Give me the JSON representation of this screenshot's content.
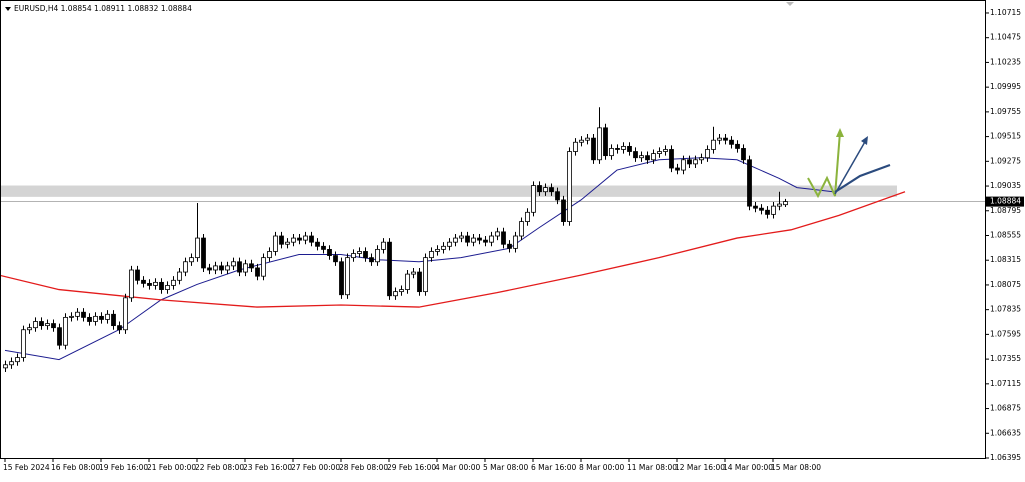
{
  "chart_data": {
    "type": "candlestick",
    "title": "EURUSD,H4  1.08854 1.08911 1.08832 1.08884",
    "current_price": 1.08884,
    "ylim": [
      1.06395,
      1.10841
    ],
    "yticks": [
      1.10715,
      1.10475,
      1.10235,
      1.09995,
      1.09755,
      1.09515,
      1.09275,
      1.09035,
      1.08795,
      1.08555,
      1.08315,
      1.08075,
      1.07835,
      1.07595,
      1.07355,
      1.07115,
      1.06875,
      1.06635,
      1.06395
    ],
    "xticks": [
      {
        "value": 0,
        "label": "15 Feb 2024"
      },
      {
        "value": 8,
        "label": "16 Feb 08:00"
      },
      {
        "value": 16,
        "label": "19 Feb 16:00"
      },
      {
        "value": 24,
        "label": "21 Feb 00:00"
      },
      {
        "value": 32,
        "label": "22 Feb 08:00"
      },
      {
        "value": 40,
        "label": "23 Feb 16:00"
      },
      {
        "value": 48,
        "label": "27 Feb 00:00"
      },
      {
        "value": 56,
        "label": "28 Feb 08:00"
      },
      {
        "value": 64,
        "label": "29 Feb 16:00"
      },
      {
        "value": 72,
        "label": "4 Mar 00:00"
      },
      {
        "value": 80,
        "label": "5 Mar 08:00"
      },
      {
        "value": 88,
        "label": "6 Mar 16:00"
      },
      {
        "value": 96,
        "label": "8 Mar 00:00"
      },
      {
        "value": 104,
        "label": "11 Mar 08:00"
      },
      {
        "value": 112,
        "label": "12 Mar 16:00"
      },
      {
        "value": 120,
        "label": "14 Mar 00:00"
      },
      {
        "value": 128,
        "label": "15 Mar 08:00"
      }
    ],
    "zone": [
      1.0893,
      1.0904
    ],
    "up_color": "#ffffff",
    "down_color": "#000000",
    "ohlc": [
      [
        1.0727,
        1.0734,
        1.0723,
        1.073
      ],
      [
        1.073,
        1.0737,
        1.0726,
        1.0733
      ],
      [
        1.0733,
        1.0741,
        1.0729,
        1.0737
      ],
      [
        1.0737,
        1.0768,
        1.0733,
        1.0764
      ],
      [
        1.0764,
        1.077,
        1.076,
        1.0766
      ],
      [
        1.0766,
        1.0776,
        1.0762,
        1.0772
      ],
      [
        1.0772,
        1.0776,
        1.0764,
        1.0768
      ],
      [
        1.0768,
        1.0774,
        1.0764,
        1.077
      ],
      [
        1.077,
        1.0774,
        1.0762,
        1.0766
      ],
      [
        1.0766,
        1.077,
        1.0745,
        1.0749
      ],
      [
        1.0749,
        1.078,
        1.0745,
        1.0776
      ],
      [
        1.0776,
        1.0781,
        1.0772,
        1.0777
      ],
      [
        1.0777,
        1.0785,
        1.0773,
        1.0781
      ],
      [
        1.0781,
        1.0785,
        1.0772,
        1.0776
      ],
      [
        1.0776,
        1.078,
        1.0768,
        1.0772
      ],
      [
        1.0772,
        1.0781,
        1.0768,
        1.0777
      ],
      [
        1.0777,
        1.0781,
        1.077,
        1.0774
      ],
      [
        1.0774,
        1.0783,
        1.077,
        1.0779
      ],
      [
        1.0779,
        1.0783,
        1.0764,
        1.0768
      ],
      [
        1.0768,
        1.0772,
        1.076,
        1.0764
      ],
      [
        1.0764,
        1.0799,
        1.076,
        1.0795
      ],
      [
        1.0795,
        1.0826,
        1.0791,
        1.0822
      ],
      [
        1.0822,
        1.0826,
        1.0808,
        1.0812
      ],
      [
        1.0812,
        1.0816,
        1.0805,
        1.0809
      ],
      [
        1.0809,
        1.0813,
        1.0803,
        1.0807
      ],
      [
        1.0807,
        1.0814,
        1.0803,
        1.081
      ],
      [
        1.081,
        1.0814,
        1.0799,
        1.0803
      ],
      [
        1.0803,
        1.0811,
        1.0799,
        1.0807
      ],
      [
        1.0807,
        1.0816,
        1.0803,
        1.0812
      ],
      [
        1.0812,
        1.0824,
        1.0808,
        1.082
      ],
      [
        1.082,
        1.0834,
        1.0816,
        1.083
      ],
      [
        1.083,
        1.0838,
        1.0826,
        1.0834
      ],
      [
        1.0834,
        1.0887,
        1.083,
        1.0853
      ],
      [
        1.0853,
        1.0857,
        1.082,
        1.0824
      ],
      [
        1.0824,
        1.0828,
        1.0818,
        1.0822
      ],
      [
        1.0822,
        1.083,
        1.0818,
        1.0826
      ],
      [
        1.0826,
        1.083,
        1.0818,
        1.0822
      ],
      [
        1.0822,
        1.083,
        1.0818,
        1.0826
      ],
      [
        1.0826,
        1.0834,
        1.0822,
        1.083
      ],
      [
        1.083,
        1.0834,
        1.0816,
        1.082
      ],
      [
        1.082,
        1.0832,
        1.0816,
        1.0828
      ],
      [
        1.0828,
        1.0832,
        1.082,
        1.0824
      ],
      [
        1.0824,
        1.0828,
        1.0812,
        1.0816
      ],
      [
        1.0816,
        1.0838,
        1.0812,
        1.0834
      ],
      [
        1.0834,
        1.0844,
        1.083,
        1.084
      ],
      [
        1.084,
        1.0859,
        1.0836,
        1.0855
      ],
      [
        1.0855,
        1.0859,
        1.0843,
        1.0847
      ],
      [
        1.0847,
        1.0853,
        1.0843,
        1.0849
      ],
      [
        1.0849,
        1.0857,
        1.0845,
        1.0853
      ],
      [
        1.0853,
        1.0857,
        1.0847,
        1.0851
      ],
      [
        1.0851,
        1.0859,
        1.0847,
        1.0855
      ],
      [
        1.0855,
        1.0859,
        1.0845,
        1.0849
      ],
      [
        1.0849,
        1.0853,
        1.0841,
        1.0845
      ],
      [
        1.0845,
        1.0849,
        1.0838,
        1.0842
      ],
      [
        1.0842,
        1.0846,
        1.0832,
        1.0836
      ],
      [
        1.0836,
        1.084,
        1.0826,
        1.083
      ],
      [
        1.083,
        1.0834,
        1.0794,
        1.0798
      ],
      [
        1.0798,
        1.0838,
        1.0794,
        1.0834
      ],
      [
        1.0834,
        1.0842,
        1.083,
        1.0838
      ],
      [
        1.0838,
        1.0844,
        1.0834,
        1.084
      ],
      [
        1.084,
        1.0844,
        1.083,
        1.0834
      ],
      [
        1.0834,
        1.0838,
        1.0826,
        1.083
      ],
      [
        1.083,
        1.0846,
        1.0826,
        1.0842
      ],
      [
        1.0842,
        1.0853,
        1.0838,
        1.0849
      ],
      [
        1.0849,
        1.0853,
        1.0793,
        1.0797
      ],
      [
        1.0797,
        1.0805,
        1.0793,
        1.0801
      ],
      [
        1.0801,
        1.0807,
        1.0797,
        1.0803
      ],
      [
        1.0803,
        1.0822,
        1.0799,
        1.0818
      ],
      [
        1.0818,
        1.0824,
        1.0814,
        1.082
      ],
      [
        1.082,
        1.0824,
        1.0797,
        1.0801
      ],
      [
        1.0801,
        1.0838,
        1.0797,
        1.0834
      ],
      [
        1.0834,
        1.0844,
        1.083,
        1.084
      ],
      [
        1.084,
        1.0846,
        1.0836,
        1.0842
      ],
      [
        1.0842,
        1.0849,
        1.0838,
        1.0845
      ],
      [
        1.0845,
        1.0853,
        1.0841,
        1.0849
      ],
      [
        1.0849,
        1.0857,
        1.0845,
        1.0853
      ],
      [
        1.0853,
        1.0859,
        1.0849,
        1.0855
      ],
      [
        1.0855,
        1.0859,
        1.0845,
        1.0849
      ],
      [
        1.0849,
        1.0857,
        1.0845,
        1.0853
      ],
      [
        1.0853,
        1.0857,
        1.0847,
        1.0851
      ],
      [
        1.0851,
        1.0855,
        1.0845,
        1.0849
      ],
      [
        1.0849,
        1.0859,
        1.0845,
        1.0855
      ],
      [
        1.0855,
        1.0863,
        1.0851,
        1.0859
      ],
      [
        1.0859,
        1.0863,
        1.0843,
        1.0847
      ],
      [
        1.0847,
        1.0851,
        1.0839,
        1.0843
      ],
      [
        1.0843,
        1.0859,
        1.0839,
        1.0855
      ],
      [
        1.0855,
        1.0873,
        1.0851,
        1.0869
      ],
      [
        1.0869,
        1.0882,
        1.0865,
        1.0878
      ],
      [
        1.0878,
        1.0908,
        1.0874,
        1.0904
      ],
      [
        1.0904,
        1.0908,
        1.0894,
        1.0898
      ],
      [
        1.0898,
        1.0906,
        1.0894,
        1.0902
      ],
      [
        1.0902,
        1.0906,
        1.0894,
        1.0898
      ],
      [
        1.0898,
        1.0902,
        1.0886,
        1.089
      ],
      [
        1.089,
        1.0894,
        1.0865,
        1.0869
      ],
      [
        1.0869,
        1.0941,
        1.0865,
        1.0937
      ],
      [
        1.0937,
        1.095,
        1.0933,
        1.0946
      ],
      [
        1.0946,
        1.0952,
        1.0942,
        1.0948
      ],
      [
        1.0948,
        1.0954,
        1.0944,
        1.095
      ],
      [
        1.095,
        1.0954,
        1.0925,
        1.0929
      ],
      [
        1.0929,
        1.098,
        1.0925,
        1.096
      ],
      [
        1.096,
        1.0964,
        1.0929,
        1.0933
      ],
      [
        1.0933,
        1.0944,
        1.0929,
        1.094
      ],
      [
        1.094,
        1.0944,
        1.0935,
        1.0939
      ],
      [
        1.0939,
        1.0946,
        1.0935,
        1.0942
      ],
      [
        1.0942,
        1.0946,
        1.0933,
        1.0937
      ],
      [
        1.0937,
        1.0941,
        1.0927,
        1.0931
      ],
      [
        1.0931,
        1.0937,
        1.0927,
        1.0933
      ],
      [
        1.0933,
        1.0937,
        1.0925,
        1.0929
      ],
      [
        1.0929,
        1.0939,
        1.0925,
        1.0935
      ],
      [
        1.0935,
        1.0941,
        1.0931,
        1.0937
      ],
      [
        1.0937,
        1.0943,
        1.0933,
        1.0939
      ],
      [
        1.0939,
        1.0943,
        1.0917,
        1.0921
      ],
      [
        1.0921,
        1.0925,
        1.0915,
        1.0919
      ],
      [
        1.0919,
        1.0933,
        1.0915,
        1.0929
      ],
      [
        1.0929,
        1.0933,
        1.0921,
        1.0925
      ],
      [
        1.0925,
        1.0933,
        1.0921,
        1.0929
      ],
      [
        1.0929,
        1.0935,
        1.0925,
        1.0931
      ],
      [
        1.0931,
        1.0943,
        1.0927,
        1.0939
      ],
      [
        1.0939,
        1.0961,
        1.0935,
        1.0948
      ],
      [
        1.0948,
        1.0954,
        1.0944,
        1.095
      ],
      [
        1.095,
        1.0954,
        1.0944,
        1.0948
      ],
      [
        1.0948,
        1.0952,
        1.094,
        1.0944
      ],
      [
        1.0944,
        1.0948,
        1.0936,
        1.094
      ],
      [
        1.094,
        1.0944,
        1.0925,
        1.0929
      ],
      [
        1.0929,
        1.0933,
        1.088,
        1.0884
      ],
      [
        1.0884,
        1.0888,
        1.0878,
        1.0882
      ],
      [
        1.0882,
        1.0886,
        1.0876,
        1.088
      ],
      [
        1.088,
        1.0884,
        1.0872,
        1.0876
      ],
      [
        1.0876,
        1.0888,
        1.0872,
        1.0884
      ],
      [
        1.0884,
        1.0898,
        1.088,
        1.0886
      ],
      [
        1.08854,
        1.08911,
        1.08832,
        1.08884
      ]
    ],
    "lines": [
      {
        "color": "#1c1c8f",
        "x": [
          0,
          9,
          19,
          26,
          32,
          39,
          49,
          56,
          62,
          69,
          76,
          84,
          89,
          96,
          102,
          109,
          116,
          122,
          129,
          132,
          135,
          138
        ],
        "values": [
          1.0744,
          1.0735,
          1.0764,
          1.0793,
          1.0808,
          1.0822,
          1.0837,
          1.0837,
          1.0832,
          1.083,
          1.0834,
          1.0843,
          1.0863,
          1.089,
          1.0919,
          1.0929,
          1.0931,
          1.0929,
          1.0911,
          1.0902,
          1.09,
          1.0898
        ]
      },
      {
        "color": "#e31b1b",
        "x": [
          -1,
          9,
          26,
          42,
          56,
          69,
          82,
          96,
          109,
          122,
          131,
          139,
          150
        ],
        "values": [
          1.0817,
          1.0803,
          1.0793,
          1.0786,
          1.0788,
          1.0786,
          1.08,
          1.0817,
          1.0834,
          1.0853,
          1.0861,
          1.0875,
          1.0898
        ]
      }
    ]
  }
}
